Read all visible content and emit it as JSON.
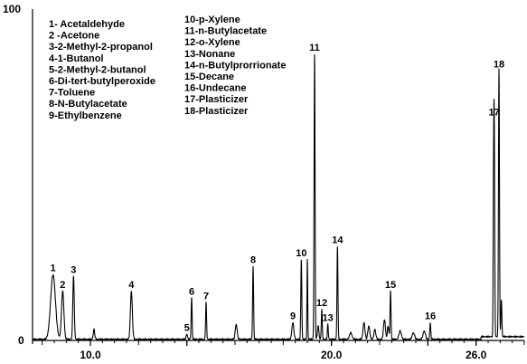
{
  "chart_data": {
    "type": "line",
    "title": "",
    "xlabel": "",
    "ylabel": "",
    "xlim": [
      7.6,
      28.0
    ],
    "ylim": [
      0,
      100
    ],
    "x_ticks": [
      10.0,
      14.0,
      20.0,
      24.0,
      26.0
    ],
    "x_tick_labels": [
      "10.0",
      "",
      "20.0",
      "",
      "26.0"
    ],
    "y_tick_labels": [
      "100",
      "0"
    ],
    "grid": false,
    "line_color": "#000000",
    "legend": {
      "placement": "top-left",
      "column1": [
        "1- Acetaldehyde",
        "2 -Acetone",
        "3-2-Methyl-2-propanol",
        "4-1-Butanol",
        "5-2-Methyl-2-butanol",
        "6-Di-tert-butylperoxide",
        "7-Toluene",
        "8-N-Butylacetate",
        "9-Ethylbenzene"
      ],
      "column2": [
        "10-p-Xylene",
        "11-n-Butylacetate",
        "12-o-Xylene",
        "13-Nonane",
        "14-n-Butylprorrionate",
        "15-Decane",
        "16-Undecane",
        "17-Plasticizer",
        "18-Plasticizer"
      ]
    },
    "peaks": [
      {
        "label": "1",
        "x": 8.45,
        "y": 19.5,
        "width": 0.1
      },
      {
        "label": "2",
        "x": 8.85,
        "y": 14.5,
        "width": 0.05
      },
      {
        "label": "3",
        "x": 9.3,
        "y": 19.0,
        "width": 0.03
      },
      {
        "label": "4",
        "x": 11.7,
        "y": 14.5,
        "width": 0.04
      },
      {
        "label": "5",
        "x": 14.0,
        "y": 1.5,
        "width": 0.03
      },
      {
        "label": "6",
        "x": 14.2,
        "y": 12.5,
        "width": 0.02
      },
      {
        "label": "7",
        "x": 14.8,
        "y": 11.0,
        "width": 0.02
      },
      {
        "label": "8",
        "x": 16.75,
        "y": 22.0,
        "width": 0.02
      },
      {
        "label": "9",
        "x": 18.4,
        "y": 5.0,
        "width": 0.04
      },
      {
        "label": "10",
        "x": 18.75,
        "y": 24.0,
        "width": 0.02
      },
      {
        "label": "11",
        "x": 19.3,
        "y": 86.0,
        "width": 0.02
      },
      {
        "label": "12",
        "x": 19.6,
        "y": 9.0,
        "width": 0.02
      },
      {
        "label": "13",
        "x": 19.85,
        "y": 4.5,
        "width": 0.02
      },
      {
        "label": "14",
        "x": 20.25,
        "y": 28.0,
        "width": 0.02
      },
      {
        "label": "15",
        "x": 22.45,
        "y": 14.5,
        "width": 0.02
      },
      {
        "label": "16",
        "x": 24.1,
        "y": 5.0,
        "width": 0.02
      },
      {
        "label": "17",
        "x": 26.75,
        "y": 66.5,
        "width": 0.02
      },
      {
        "label": "18",
        "x": 26.95,
        "y": 81.0,
        "width": 0.02
      }
    ],
    "minor_peaks": [
      {
        "x": 10.15,
        "y": 3.0,
        "width": 0.03
      },
      {
        "x": 16.05,
        "y": 4.5,
        "width": 0.04
      },
      {
        "x": 19.0,
        "y": 24.0,
        "width": 0.015
      },
      {
        "x": 19.45,
        "y": 4.0,
        "width": 0.03
      },
      {
        "x": 20.8,
        "y": 2.0,
        "width": 0.05
      },
      {
        "x": 21.35,
        "y": 5.0,
        "width": 0.04
      },
      {
        "x": 21.55,
        "y": 4.0,
        "width": 0.04
      },
      {
        "x": 21.8,
        "y": 3.0,
        "width": 0.04
      },
      {
        "x": 22.2,
        "y": 6.0,
        "width": 0.04
      },
      {
        "x": 22.35,
        "y": 4.0,
        "width": 0.03
      },
      {
        "x": 22.85,
        "y": 2.5,
        "width": 0.05
      },
      {
        "x": 23.4,
        "y": 2.0,
        "width": 0.05
      },
      {
        "x": 23.85,
        "y": 2.5,
        "width": 0.05
      },
      {
        "x": 26.72,
        "y": 28.0,
        "width": 0.015
      },
      {
        "x": 27.05,
        "y": 11.0,
        "width": 0.02
      }
    ]
  }
}
